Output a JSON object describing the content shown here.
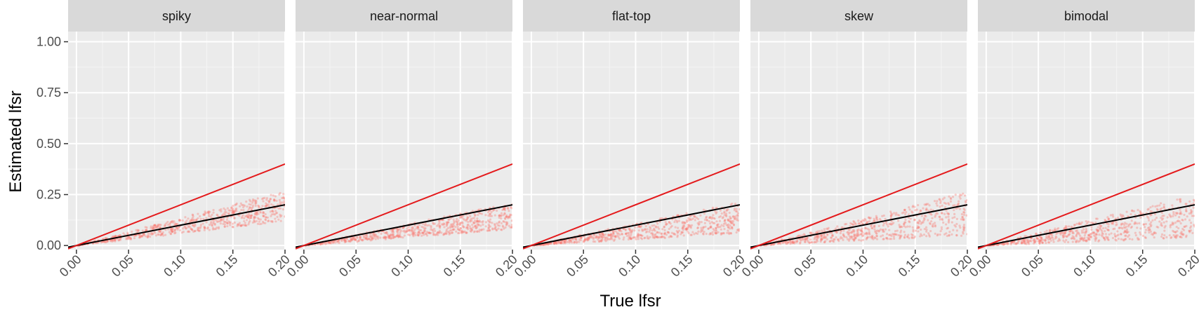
{
  "chart_data": {
    "type": "scatter",
    "xlabel": "True lfsr",
    "ylabel": "Estimated lfsr",
    "xlim": [
      -0.008,
      0.2
    ],
    "ylim": [
      -0.02,
      1.05
    ],
    "x_ticks": [
      0.0,
      0.05,
      0.1,
      0.15,
      0.2
    ],
    "x_tick_labels": [
      "0.00",
      "0.05",
      "0.10",
      "0.15",
      "0.20"
    ],
    "y_ticks": [
      0.0,
      0.25,
      0.5,
      0.75,
      1.0
    ],
    "y_tick_labels": [
      "0.00",
      "0.25",
      "0.50",
      "0.75",
      "1.00"
    ],
    "grid": true,
    "panels": [
      {
        "label": "spiky",
        "band": {
          "low_slope": 0.6,
          "high_slope": 1.35
        }
      },
      {
        "label": "near-normal",
        "band": {
          "low_slope": 0.4,
          "high_slope": 1.05
        }
      },
      {
        "label": "flat-top",
        "band": {
          "low_slope": 0.3,
          "high_slope": 1.08
        }
      },
      {
        "label": "skew",
        "band": {
          "low_slope": 0.25,
          "high_slope": 1.32
        }
      },
      {
        "label": "bimodal",
        "band": {
          "low_slope": 0.2,
          "high_slope": 1.25
        }
      }
    ],
    "reference_lines": [
      {
        "name": "y = x",
        "slope": 1.0,
        "intercept": 0.0,
        "color": "#000000"
      },
      {
        "name": "y = 2x",
        "slope": 2.0,
        "intercept": 0.0,
        "color": "#e41a1c"
      }
    ],
    "point_color": "#f8766d"
  }
}
